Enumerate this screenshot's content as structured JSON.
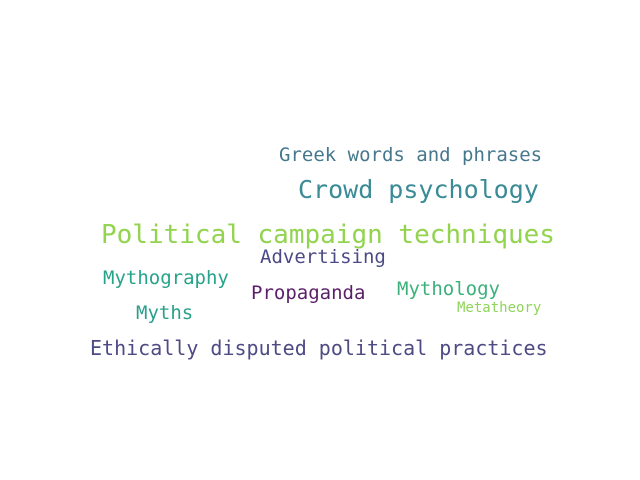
{
  "words": [
    {
      "text": "Greek words and phrases",
      "color": "#46788d"
    },
    {
      "text": "Crowd psychology",
      "color": "#3a8b96"
    },
    {
      "text": "Political campaign techniques",
      "color": "#92d44f"
    },
    {
      "text": "Advertising",
      "color": "#4b4a86"
    },
    {
      "text": "Mythography",
      "color": "#27a38a"
    },
    {
      "text": "Propaganda",
      "color": "#5b1e6a"
    },
    {
      "text": "Mythology",
      "color": "#3bb07a"
    },
    {
      "text": "Metatheory",
      "color": "#8ed45a"
    },
    {
      "text": "Myths",
      "color": "#2a9f8c"
    },
    {
      "text": "Ethically disputed political practices",
      "color": "#4e4a84"
    }
  ]
}
